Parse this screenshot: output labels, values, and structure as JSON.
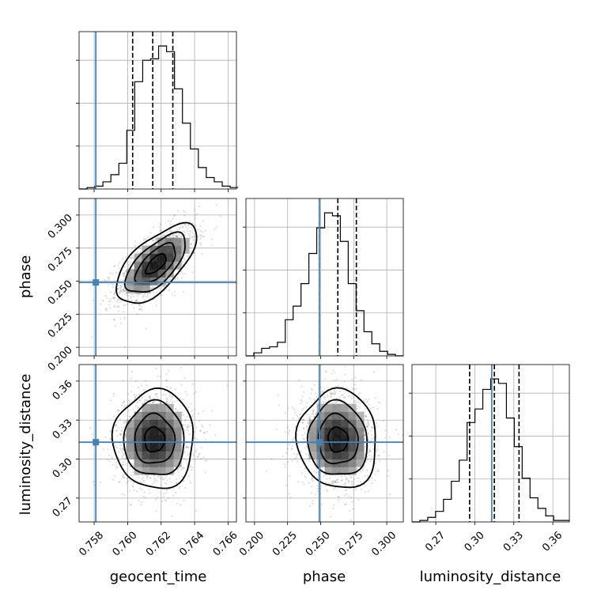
{
  "chart_data": {
    "type": "corner",
    "parameters": [
      "geocent_time",
      "phase",
      "luminosity_distance"
    ],
    "truths": {
      "geocent_time": 0.7581,
      "phase": 0.249,
      "luminosity_distance": 0.313
    },
    "quantiles": {
      "geocent_time": [
        0.7603,
        0.7615,
        0.7627
      ],
      "phase": [
        0.249,
        0.263,
        0.277
      ],
      "luminosity_distance": [
        0.296,
        0.315,
        0.334
      ]
    },
    "truth_color": "#4682b4",
    "grid": true,
    "axes": {
      "geocent_time": {
        "range": [
          0.7571,
          0.7665
        ],
        "ticks": [
          "0.758",
          "0.760",
          "0.762",
          "0.764",
          "0.766"
        ],
        "tick_values": [
          0.758,
          0.76,
          0.762,
          0.764,
          0.766
        ]
      },
      "phase": {
        "range": [
          0.1935,
          0.3125
        ],
        "ticks": [
          "0.200",
          "0.225",
          "0.250",
          "0.275",
          "0.300"
        ],
        "tick_values": [
          0.2,
          0.225,
          0.25,
          0.275,
          0.3
        ]
      },
      "luminosity_distance": {
        "range": [
          0.2517,
          0.3727
        ],
        "ticks": [
          "0.27",
          "0.30",
          "0.33",
          "0.36"
        ],
        "tick_values": [
          0.27,
          0.3,
          0.33,
          0.36
        ]
      }
    },
    "histograms": {
      "geocent_time": {
        "bins": [
          0.7571,
          0.7666
        ],
        "counts": [
          0,
          1,
          2,
          5,
          10,
          18,
          41,
          75,
          90,
          91,
          100,
          96,
          70,
          46,
          28,
          15,
          8,
          5,
          2,
          1
        ]
      },
      "phase": {
        "bins": [
          0.1935,
          0.3125
        ],
        "counts": [
          0,
          2,
          5,
          6,
          9,
          24,
          33,
          48,
          68,
          85,
          95,
          93,
          76,
          48,
          30,
          16,
          8,
          3,
          1,
          0
        ]
      },
      "luminosity_distance": {
        "bins": [
          0.2517,
          0.3727
        ],
        "counts": [
          0,
          1,
          3,
          7,
          15,
          27,
          41,
          66,
          75,
          88,
          95,
          92,
          69,
          50,
          29,
          16,
          9,
          4,
          1,
          1
        ]
      }
    },
    "pairs": [
      {
        "x": "geocent_time",
        "y": "phase",
        "mean": [
          0.7617,
          0.263
        ],
        "sd": [
          0.0012,
          0.015
        ],
        "corr": 0.65
      },
      {
        "x": "geocent_time",
        "y": "luminosity_distance",
        "mean": [
          0.7616,
          0.315
        ],
        "sd": [
          0.0012,
          0.019
        ],
        "corr": 0.0
      },
      {
        "x": "phase",
        "y": "luminosity_distance",
        "mean": [
          0.263,
          0.315
        ],
        "sd": [
          0.015,
          0.019
        ],
        "corr": -0.05
      }
    ],
    "contour_levels_sigma": [
      0.5,
      1.0,
      1.5,
      2.0
    ]
  }
}
